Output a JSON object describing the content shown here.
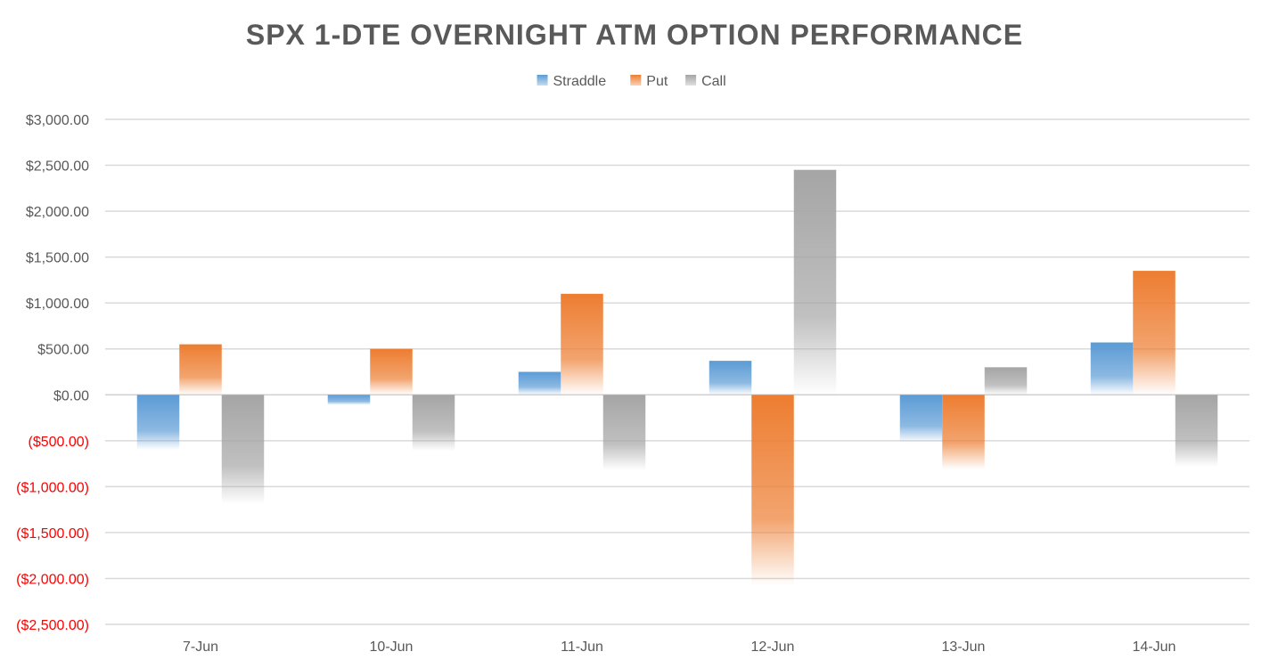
{
  "chart_data": {
    "type": "bar",
    "title": "SPX 1-DTE OVERNIGHT ATM OPTION PERFORMANCE",
    "categories": [
      "7-Jun",
      "10-Jun",
      "11-Jun",
      "12-Jun",
      "13-Jun",
      "14-Jun"
    ],
    "series": [
      {
        "name": "Straddle",
        "color": "#5B9BD5",
        "values": [
          -600,
          -110,
          250,
          370,
          -520,
          570
        ]
      },
      {
        "name": "Put",
        "color": "#ED7D31",
        "values": [
          550,
          500,
          1100,
          -2080,
          -810,
          1350
        ]
      },
      {
        "name": "Call",
        "color": "#A5A5A5",
        "values": [
          -1190,
          -610,
          -820,
          2450,
          300,
          -780
        ]
      }
    ],
    "ylim": [
      -2500,
      3000
    ],
    "y_ticks": [
      3000,
      2500,
      2000,
      1500,
      1000,
      500,
      0,
      -500,
      -1000,
      -1500,
      -2000,
      -2500
    ],
    "y_tick_labels": [
      "$3,000.00",
      "$2,500.00",
      "$2,000.00",
      "$1,500.00",
      "$1,000.00",
      "$500.00",
      "$0.00",
      "($500.00)",
      "($1,000.00)",
      "($1,500.00)",
      "($2,000.00)",
      "($2,500.00)"
    ],
    "negative_label_color": "#FF0000",
    "positive_label_color": "#595959",
    "gridlines": true,
    "legend_position": "top-center",
    "bar_style": "gradient-fade"
  }
}
